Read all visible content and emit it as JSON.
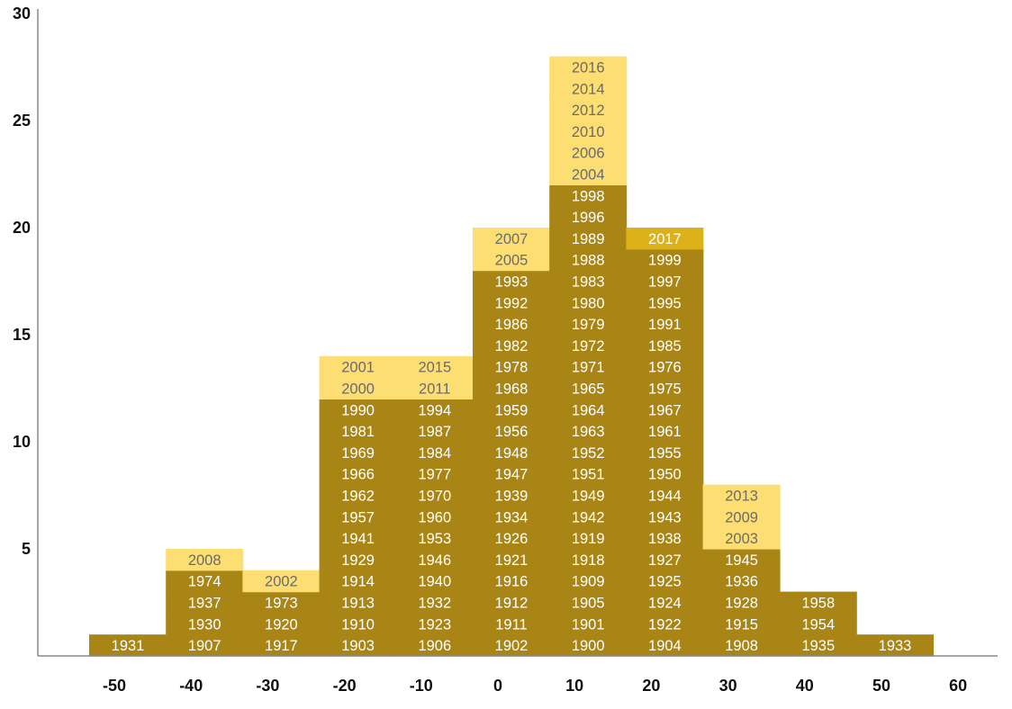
{
  "chart_data": {
    "type": "bar",
    "title": "",
    "xlabel": "",
    "ylabel": "",
    "x_ticks": [
      "-50",
      "-40",
      "-30",
      "-20",
      "-10",
      "0",
      "10",
      "20",
      "30",
      "40",
      "50",
      "60"
    ],
    "y_ticks": [
      "5",
      "10",
      "15",
      "20",
      "25",
      "30"
    ],
    "ylim": [
      0,
      30
    ],
    "grid": false,
    "colors": {
      "dark": "#A98516",
      "light": "#FDDE73",
      "highlight": "#DCB11A",
      "axis": "#888888"
    },
    "bins": [
      {
        "x": "-50",
        "dark": [
          "1931"
        ],
        "light": []
      },
      {
        "x": "-40",
        "dark": [
          "1907",
          "1930",
          "1937",
          "1974"
        ],
        "light": [
          "2008"
        ]
      },
      {
        "x": "-30",
        "dark": [
          "1917",
          "1920",
          "1973"
        ],
        "light": [
          "2002"
        ]
      },
      {
        "x": "-20",
        "dark": [
          "1903",
          "1910",
          "1913",
          "1914",
          "1929",
          "1941",
          "1957",
          "1962",
          "1966",
          "1969",
          "1981",
          "1990"
        ],
        "light": [
          "2000",
          "2001"
        ]
      },
      {
        "x": "-10",
        "dark": [
          "1906",
          "1923",
          "1932",
          "1940",
          "1946",
          "1953",
          "1960",
          "1970",
          "1977",
          "1984",
          "1987",
          "1994"
        ],
        "light": [
          "2011",
          "2015"
        ]
      },
      {
        "x": "0",
        "dark": [
          "1902",
          "1911",
          "1912",
          "1916",
          "1921",
          "1926",
          "1934",
          "1939",
          "1947",
          "1948",
          "1956",
          "1959",
          "1968",
          "1978",
          "1982",
          "1986",
          "1992",
          "1993"
        ],
        "light": [
          "2005",
          "2007"
        ]
      },
      {
        "x": "10",
        "dark": [
          "1900",
          "1901",
          "1905",
          "1909",
          "1918",
          "1919",
          "1942",
          "1949",
          "1951",
          "1952",
          "1963",
          "1964",
          "1965",
          "1971",
          "1972",
          "1979",
          "1980",
          "1983",
          "1988",
          "1989",
          "1996",
          "1998"
        ],
        "light": [
          "2004",
          "2006",
          "2010",
          "2012",
          "2014",
          "2016"
        ]
      },
      {
        "x": "20",
        "dark": [
          "1904",
          "1922",
          "1924",
          "1925",
          "1927",
          "1938",
          "1943",
          "1944",
          "1950",
          "1955",
          "1961",
          "1967",
          "1975",
          "1976",
          "1985",
          "1991",
          "1995",
          "1997",
          "1999"
        ],
        "light": [],
        "highlight": [
          "2017"
        ]
      },
      {
        "x": "30",
        "dark": [
          "1908",
          "1915",
          "1928",
          "1936",
          "1945"
        ],
        "light": [
          "2003",
          "2009",
          "2013"
        ]
      },
      {
        "x": "40",
        "dark": [
          "1935",
          "1954",
          "1958"
        ],
        "light": []
      },
      {
        "x": "50",
        "dark": [
          "1933"
        ],
        "light": []
      }
    ]
  }
}
